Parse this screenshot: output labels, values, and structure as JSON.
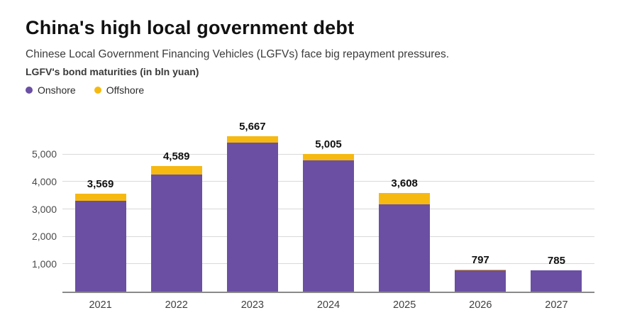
{
  "header": {
    "title": "China's high local government debt",
    "subtitle": "Chinese Local Government Financing Vehicles (LGFVs) face big repayment pressures.",
    "chart_label": "LGFV's bond maturities (in bln yuan)"
  },
  "legend": [
    {
      "label": "Onshore",
      "color": "#6a4fa3"
    },
    {
      "label": "Offshore",
      "color": "#f6b912"
    }
  ],
  "chart_data": {
    "type": "bar",
    "stacked": true,
    "title": "LGFV's bond maturities (in bln yuan)",
    "categories": [
      "2021",
      "2022",
      "2023",
      "2024",
      "2025",
      "2026",
      "2027"
    ],
    "series": [
      {
        "name": "Onshore",
        "color": "#6a4fa3",
        "values": [
          3300,
          4260,
          5440,
          4790,
          3170,
          770,
          765
        ]
      },
      {
        "name": "Offshore",
        "color": "#f6b912",
        "values": [
          269,
          329,
          227,
          215,
          438,
          27,
          20
        ]
      }
    ],
    "totals": [
      3569,
      4589,
      5667,
      5005,
      3608,
      797,
      785
    ],
    "total_labels": [
      "3,569",
      "4,589",
      "5,667",
      "5,005",
      "3,608",
      "797",
      "785"
    ],
    "xlabel": "",
    "ylabel": "",
    "yticks": [
      1000,
      2000,
      3000,
      4000,
      5000
    ],
    "ytick_labels": [
      "1,000",
      "2,000",
      "3,000",
      "4,000",
      "5,000"
    ],
    "ylim": [
      0,
      6000
    ],
    "grid": true,
    "legend_position": "top-left"
  }
}
